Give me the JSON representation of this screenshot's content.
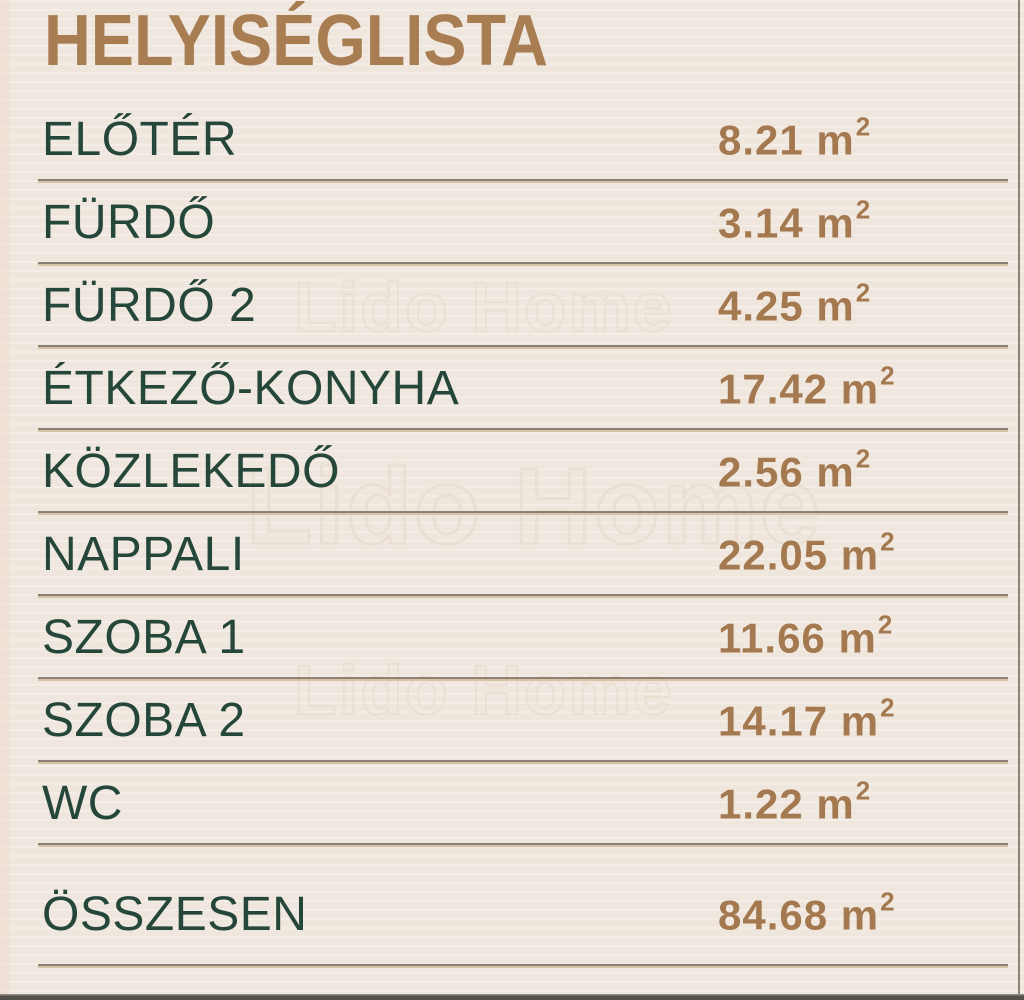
{
  "title": "HELYISÉGLISTA",
  "watermark": {
    "text": "Lido Home"
  },
  "unit": {
    "base": "m",
    "sup": "2"
  },
  "rooms": [
    {
      "name": "ELŐTÉR",
      "area": "8.21"
    },
    {
      "name": "FÜRDŐ",
      "area": "3.14"
    },
    {
      "name": "FÜRDŐ 2",
      "area": "4.25"
    },
    {
      "name": "ÉTKEZŐ-KONYHA",
      "area": "17.42"
    },
    {
      "name": "KÖZLEKEDŐ",
      "area": "2.56"
    },
    {
      "name": "NAPPALI",
      "area": "22.05"
    },
    {
      "name": "SZOBA 1",
      "area": "11.66"
    },
    {
      "name": "SZOBA 2",
      "area": "14.17"
    },
    {
      "name": "WC",
      "area": "1.22"
    }
  ],
  "total": {
    "name": "ÖSSZESEN",
    "area": "84.68"
  },
  "colors": {
    "background": "#F2E9E1",
    "title": "#A87D52",
    "room_name": "#25473A",
    "area_value": "#A5794F",
    "separator_dark": "#8D8173",
    "separator_light": "#D8C2A6",
    "watermark_outline": "#EADFD3"
  }
}
